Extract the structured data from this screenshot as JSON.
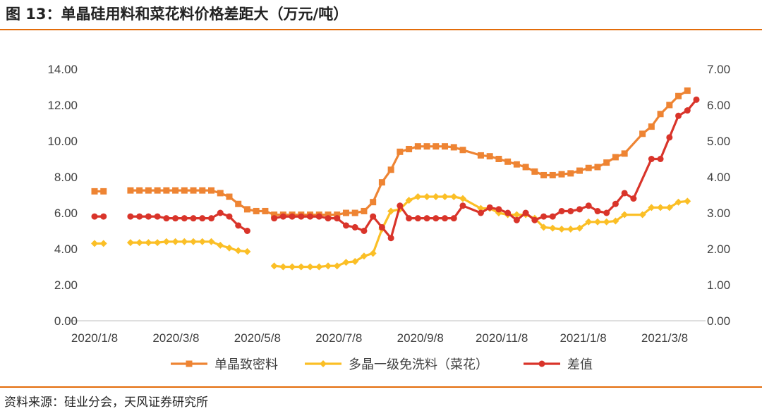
{
  "header": {
    "title": "图 13：单晶硅用料和菜花料价格差距大（万元/吨）"
  },
  "footer": {
    "source": "资料来源：硅业分会，天风证券研究所"
  },
  "chart_data": {
    "type": "line",
    "x_tick_labels": [
      "2020/1/8",
      "2020/3/8",
      "2020/5/8",
      "2020/7/8",
      "2020/9/8",
      "2020/11/8",
      "2021/1/8",
      "2021/3/8"
    ],
    "left_axis": {
      "ylim": [
        0,
        14
      ],
      "ticks": [
        "0.00",
        "2.00",
        "4.00",
        "6.00",
        "8.00",
        "10.00",
        "12.00",
        "14.00"
      ]
    },
    "right_axis": {
      "ylim": [
        0,
        7
      ],
      "ticks": [
        "0.00",
        "1.00",
        "2.00",
        "3.00",
        "4.00",
        "5.00",
        "6.00",
        "7.00"
      ]
    },
    "series": [
      {
        "name": "单晶致密料",
        "axis": "left",
        "color": "#ee8433",
        "marker": "square",
        "points": [
          [
            "2020-01-08",
            7.2
          ],
          [
            "2020-01-15",
            7.2
          ],
          [
            "2020-02-05",
            7.25
          ],
          [
            "2020-02-12",
            7.25
          ],
          [
            "2020-02-19",
            7.25
          ],
          [
            "2020-02-26",
            7.25
          ],
          [
            "2020-03-04",
            7.25
          ],
          [
            "2020-03-11",
            7.25
          ],
          [
            "2020-03-18",
            7.25
          ],
          [
            "2020-03-25",
            7.25
          ],
          [
            "2020-04-01",
            7.25
          ],
          [
            "2020-04-08",
            7.25
          ],
          [
            "2020-04-15",
            7.1
          ],
          [
            "2020-04-22",
            6.9
          ],
          [
            "2020-04-29",
            6.5
          ],
          [
            "2020-05-06",
            6.2
          ],
          [
            "2020-05-13",
            6.1
          ],
          [
            "2020-05-20",
            6.1
          ],
          [
            "2020-05-27",
            5.9
          ],
          [
            "2020-06-03",
            5.9
          ],
          [
            "2020-06-10",
            5.9
          ],
          [
            "2020-06-17",
            5.9
          ],
          [
            "2020-06-24",
            5.9
          ],
          [
            "2020-07-01",
            5.9
          ],
          [
            "2020-07-08",
            5.9
          ],
          [
            "2020-07-15",
            5.9
          ],
          [
            "2020-07-22",
            6.0
          ],
          [
            "2020-07-29",
            6.0
          ],
          [
            "2020-08-05",
            6.1
          ],
          [
            "2020-08-12",
            6.6
          ],
          [
            "2020-08-19",
            7.7
          ],
          [
            "2020-08-26",
            8.4
          ],
          [
            "2020-09-02",
            9.4
          ],
          [
            "2020-09-09",
            9.55
          ],
          [
            "2020-09-16",
            9.7
          ],
          [
            "2020-09-23",
            9.7
          ],
          [
            "2020-09-30",
            9.7
          ],
          [
            "2020-10-07",
            9.7
          ],
          [
            "2020-10-14",
            9.65
          ],
          [
            "2020-10-21",
            9.5
          ],
          [
            "2020-11-04",
            9.2
          ],
          [
            "2020-11-11",
            9.15
          ],
          [
            "2020-11-18",
            9.0
          ],
          [
            "2020-11-25",
            8.85
          ],
          [
            "2020-12-02",
            8.7
          ],
          [
            "2020-12-09",
            8.55
          ],
          [
            "2020-12-16",
            8.3
          ],
          [
            "2020-12-23",
            8.1
          ],
          [
            "2020-12-30",
            8.1
          ],
          [
            "2021-01-06",
            8.15
          ],
          [
            "2021-01-13",
            8.2
          ],
          [
            "2021-01-20",
            8.35
          ],
          [
            "2021-01-27",
            8.5
          ],
          [
            "2021-02-03",
            8.55
          ],
          [
            "2021-02-10",
            8.8
          ],
          [
            "2021-02-17",
            9.1
          ],
          [
            "2021-02-24",
            9.3
          ],
          [
            "2021-03-10",
            10.4
          ],
          [
            "2021-03-17",
            10.8
          ],
          [
            "2021-03-24",
            11.5
          ],
          [
            "2021-03-31",
            12.0
          ],
          [
            "2021-04-07",
            12.5
          ],
          [
            "2021-04-14",
            12.8
          ]
        ]
      },
      {
        "name": "多晶一级免洗料（菜花）",
        "axis": "left",
        "color": "#fbbf26",
        "marker": "diamond",
        "points": [
          [
            "2020-01-08",
            4.3
          ],
          [
            "2020-01-15",
            4.3
          ],
          [
            "2020-02-05",
            4.35
          ],
          [
            "2020-02-12",
            4.35
          ],
          [
            "2020-02-19",
            4.35
          ],
          [
            "2020-02-26",
            4.35
          ],
          [
            "2020-03-04",
            4.4
          ],
          [
            "2020-03-11",
            4.4
          ],
          [
            "2020-03-18",
            4.4
          ],
          [
            "2020-03-25",
            4.4
          ],
          [
            "2020-04-01",
            4.4
          ],
          [
            "2020-04-08",
            4.4
          ],
          [
            "2020-04-15",
            4.2
          ],
          [
            "2020-04-22",
            4.05
          ],
          [
            "2020-04-29",
            3.9
          ],
          [
            "2020-05-06",
            3.85
          ],
          [
            "2020-05-27",
            3.05
          ],
          [
            "2020-06-03",
            3.0
          ],
          [
            "2020-06-10",
            3.0
          ],
          [
            "2020-06-17",
            3.0
          ],
          [
            "2020-06-24",
            3.0
          ],
          [
            "2020-07-01",
            3.0
          ],
          [
            "2020-07-08",
            3.05
          ],
          [
            "2020-07-15",
            3.05
          ],
          [
            "2020-07-22",
            3.25
          ],
          [
            "2020-07-29",
            3.3
          ],
          [
            "2020-08-05",
            3.6
          ],
          [
            "2020-08-12",
            3.75
          ],
          [
            "2020-08-19",
            5.1
          ],
          [
            "2020-08-26",
            6.1
          ],
          [
            "2020-09-02",
            6.2
          ],
          [
            "2020-09-09",
            6.7
          ],
          [
            "2020-09-16",
            6.9
          ],
          [
            "2020-09-23",
            6.9
          ],
          [
            "2020-09-30",
            6.9
          ],
          [
            "2020-10-07",
            6.9
          ],
          [
            "2020-10-14",
            6.9
          ],
          [
            "2020-10-21",
            6.8
          ],
          [
            "2020-11-04",
            6.25
          ],
          [
            "2020-11-11",
            6.25
          ],
          [
            "2020-11-18",
            6.0
          ],
          [
            "2020-11-25",
            5.9
          ],
          [
            "2020-12-02",
            5.9
          ],
          [
            "2020-12-09",
            5.9
          ],
          [
            "2020-12-16",
            5.7
          ],
          [
            "2020-12-23",
            5.2
          ],
          [
            "2020-12-30",
            5.15
          ],
          [
            "2021-01-06",
            5.1
          ],
          [
            "2021-01-13",
            5.1
          ],
          [
            "2021-01-20",
            5.15
          ],
          [
            "2021-01-27",
            5.5
          ],
          [
            "2021-02-03",
            5.5
          ],
          [
            "2021-02-10",
            5.5
          ],
          [
            "2021-02-17",
            5.55
          ],
          [
            "2021-02-24",
            5.9
          ],
          [
            "2021-03-10",
            5.9
          ],
          [
            "2021-03-17",
            6.3
          ],
          [
            "2021-03-24",
            6.3
          ],
          [
            "2021-03-31",
            6.3
          ],
          [
            "2021-04-07",
            6.6
          ],
          [
            "2021-04-14",
            6.65
          ]
        ]
      },
      {
        "name": "差值",
        "axis": "right",
        "color": "#d9342a",
        "marker": "circle",
        "points": [
          [
            "2020-01-08",
            2.9
          ],
          [
            "2020-01-15",
            2.9
          ],
          [
            "2020-02-05",
            2.9
          ],
          [
            "2020-02-12",
            2.9
          ],
          [
            "2020-02-19",
            2.9
          ],
          [
            "2020-02-26",
            2.9
          ],
          [
            "2020-03-04",
            2.85
          ],
          [
            "2020-03-11",
            2.85
          ],
          [
            "2020-03-18",
            2.85
          ],
          [
            "2020-03-25",
            2.85
          ],
          [
            "2020-04-01",
            2.85
          ],
          [
            "2020-04-08",
            2.85
          ],
          [
            "2020-04-15",
            3.0
          ],
          [
            "2020-04-22",
            2.9
          ],
          [
            "2020-04-29",
            2.65
          ],
          [
            "2020-05-06",
            2.5
          ],
          [
            "2020-05-27",
            2.85
          ],
          [
            "2020-06-03",
            2.9
          ],
          [
            "2020-06-10",
            2.9
          ],
          [
            "2020-06-17",
            2.9
          ],
          [
            "2020-06-24",
            2.9
          ],
          [
            "2020-07-01",
            2.9
          ],
          [
            "2020-07-08",
            2.85
          ],
          [
            "2020-07-15",
            2.85
          ],
          [
            "2020-07-22",
            2.65
          ],
          [
            "2020-07-29",
            2.6
          ],
          [
            "2020-08-05",
            2.5
          ],
          [
            "2020-08-12",
            2.9
          ],
          [
            "2020-08-19",
            2.6
          ],
          [
            "2020-08-26",
            2.3
          ],
          [
            "2020-09-02",
            3.2
          ],
          [
            "2020-09-09",
            2.85
          ],
          [
            "2020-09-16",
            2.85
          ],
          [
            "2020-09-23",
            2.85
          ],
          [
            "2020-09-30",
            2.85
          ],
          [
            "2020-10-07",
            2.85
          ],
          [
            "2020-10-14",
            2.85
          ],
          [
            "2020-10-21",
            3.2
          ],
          [
            "2020-11-04",
            3.0
          ],
          [
            "2020-11-11",
            3.15
          ],
          [
            "2020-11-18",
            3.1
          ],
          [
            "2020-11-25",
            3.0
          ],
          [
            "2020-12-02",
            2.8
          ],
          [
            "2020-12-09",
            3.0
          ],
          [
            "2020-12-16",
            2.8
          ],
          [
            "2020-12-23",
            2.9
          ],
          [
            "2020-12-30",
            2.9
          ],
          [
            "2021-01-06",
            3.05
          ],
          [
            "2021-01-13",
            3.05
          ],
          [
            "2021-01-20",
            3.1
          ],
          [
            "2021-01-27",
            3.2
          ],
          [
            "2021-02-03",
            3.05
          ],
          [
            "2021-02-10",
            3.0
          ],
          [
            "2021-02-17",
            3.25
          ],
          [
            "2021-02-24",
            3.55
          ],
          [
            "2021-03-03",
            3.4
          ],
          [
            "2021-03-17",
            4.5
          ],
          [
            "2021-03-24",
            4.5
          ],
          [
            "2021-03-31",
            5.1
          ],
          [
            "2021-04-07",
            5.7
          ],
          [
            "2021-04-14",
            5.85
          ],
          [
            "2021-04-21",
            6.15
          ]
        ]
      }
    ]
  }
}
